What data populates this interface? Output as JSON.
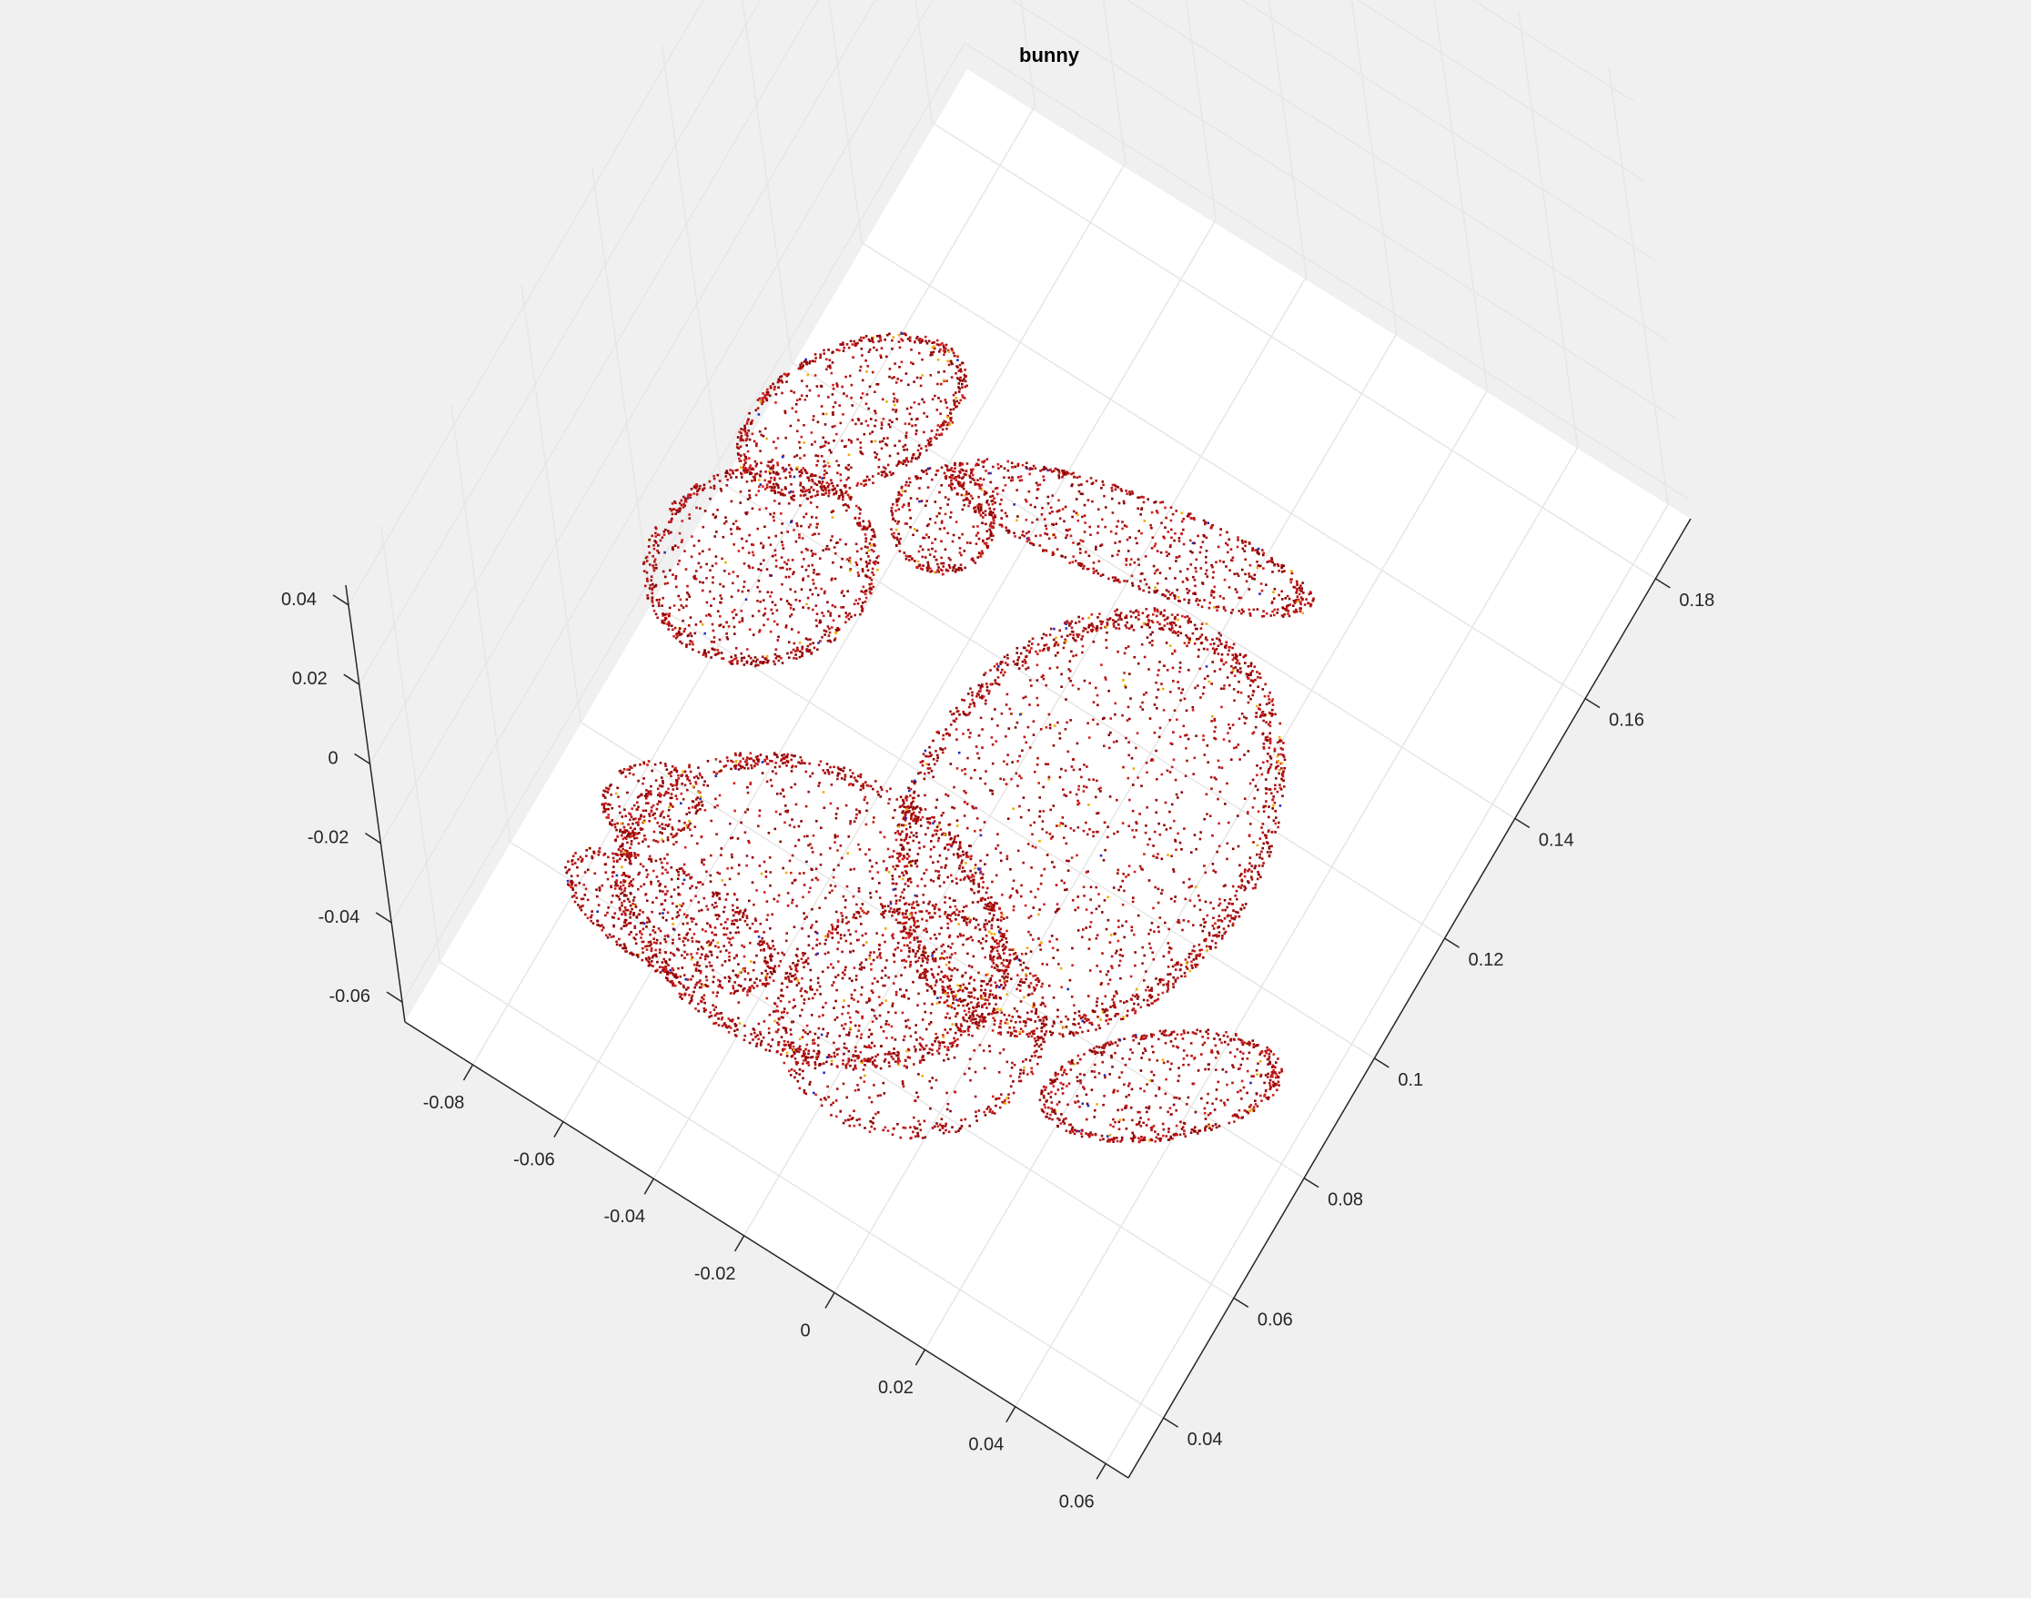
{
  "window": {
    "background": "#f0f0f0"
  },
  "chart_data": {
    "type": "scatter",
    "title": "bunny",
    "xlabel": "",
    "ylabel": "",
    "zlabel": "",
    "grid": true,
    "view": "3d",
    "x_axis": {
      "range": [
        -0.095,
        0.065
      ],
      "ticks": [
        -0.08,
        -0.06,
        -0.04,
        -0.02,
        0,
        0.02,
        0.04,
        0.06
      ],
      "tick_labels": [
        "-0.08",
        "-0.06",
        "-0.04",
        "-0.02",
        "0",
        "0.02",
        "0.04",
        "0.06"
      ]
    },
    "y_axis": {
      "range": [
        0.03,
        0.19
      ],
      "ticks": [
        0.04,
        0.06,
        0.08,
        0.1,
        0.12,
        0.14,
        0.16,
        0.18
      ],
      "tick_labels": [
        "0.04",
        "0.06",
        "0.08",
        "0.1",
        "0.12",
        "0.14",
        "0.16",
        "0.18"
      ]
    },
    "z_axis": {
      "range": [
        -0.065,
        0.045
      ],
      "ticks": [
        -0.06,
        -0.04,
        -0.02,
        0,
        0.02,
        0.04
      ],
      "tick_labels": [
        "-0.06",
        "-0.04",
        "-0.02",
        "0",
        "0.02",
        "0.04"
      ]
    },
    "series": [
      {
        "marker": "point",
        "colors": [
          "#b01010",
          "#8b0000",
          "#d02020",
          "#e8b000",
          "#2030c0"
        ],
        "shape": "Stanford bunny point cloud"
      }
    ]
  }
}
